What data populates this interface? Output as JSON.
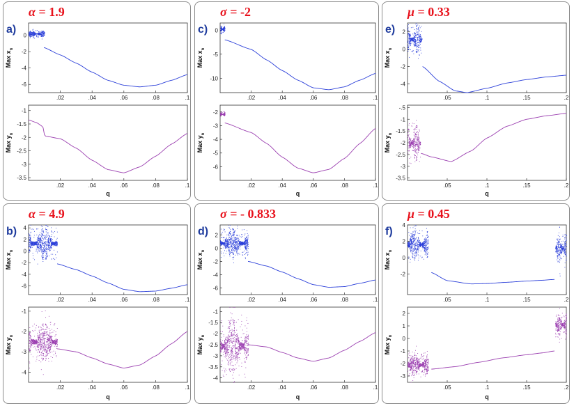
{
  "figure": {
    "xlabel": "q",
    "ylabel_top": "Max x",
    "ylabel_bottom": "Max y",
    "subscript": "n",
    "colors": {
      "x_series": "#2b3fd9",
      "y_series": "#9b3fb0",
      "param": "#e8111b",
      "letter": "#1f3c9e"
    }
  },
  "chart_data": [
    {
      "id": "a",
      "letter": "a)",
      "symbol": "α",
      "param_text": " = 1.9",
      "qmax": 0.1,
      "top": {
        "type": "scatter",
        "ylim": [
          -7,
          1.5
        ],
        "yticks": [
          -6,
          -4,
          -2,
          0
        ],
        "chaos": [
          {
            "q0": 0.0,
            "q1": 0.01,
            "ylo": -0.2,
            "yhi": 0.6,
            "density": 0.7
          }
        ],
        "curve": [
          [
            0.0097,
            -1.5
          ],
          [
            0.02,
            -2.4
          ],
          [
            0.03,
            -3.4
          ],
          [
            0.04,
            -4.5
          ],
          [
            0.05,
            -5.5
          ],
          [
            0.06,
            -6.1
          ],
          [
            0.07,
            -6.3
          ],
          [
            0.08,
            -6.1
          ],
          [
            0.09,
            -5.5
          ],
          [
            0.1,
            -4.8
          ]
        ]
      },
      "bottom": {
        "type": "scatter",
        "ylim": [
          -3.6,
          -0.8
        ],
        "yticks": [
          -3.5,
          -3,
          -2.5,
          -2,
          -1.5,
          -1
        ],
        "chaos": [],
        "curve": [
          [
            0.0,
            -1.35
          ],
          [
            0.005,
            -1.45
          ],
          [
            0.009,
            -1.6
          ],
          [
            0.0102,
            -1.95
          ],
          [
            0.02,
            -2.05
          ],
          [
            0.03,
            -2.4
          ],
          [
            0.04,
            -2.85
          ],
          [
            0.05,
            -3.2
          ],
          [
            0.06,
            -3.32
          ],
          [
            0.07,
            -3.1
          ],
          [
            0.08,
            -2.7
          ],
          [
            0.09,
            -2.25
          ],
          [
            0.1,
            -1.85
          ]
        ]
      },
      "xticks": [
        0.02,
        0.04,
        0.06,
        0.08,
        0.1
      ]
    },
    {
      "id": "c",
      "letter": "c)",
      "symbol": "σ",
      "param_text": " = -2",
      "qmax": 0.1,
      "top": {
        "type": "scatter",
        "ylim": [
          -13,
          1.5
        ],
        "yticks": [
          -10,
          -5,
          0
        ],
        "chaos": [
          {
            "q0": 0.0,
            "q1": 0.003,
            "ylo": -0.5,
            "yhi": 1.0,
            "density": 0.6
          }
        ],
        "curve": [
          [
            0.003,
            -2.0
          ],
          [
            0.02,
            -4.0
          ],
          [
            0.03,
            -6.2
          ],
          [
            0.04,
            -8.4
          ],
          [
            0.05,
            -10.4
          ],
          [
            0.06,
            -12.0
          ],
          [
            0.07,
            -12.4
          ],
          [
            0.08,
            -11.8
          ],
          [
            0.09,
            -10.4
          ],
          [
            0.1,
            -9.0
          ]
        ]
      },
      "bottom": {
        "type": "scatter",
        "ylim": [
          -7,
          -1.5
        ],
        "yticks": [
          -6,
          -5,
          -4,
          -3,
          -2
        ],
        "chaos": [
          {
            "q0": 0.0,
            "q1": 0.003,
            "ylo": -2.3,
            "yhi": -2.0,
            "density": 0.6
          }
        ],
        "curve": [
          [
            0.003,
            -2.8
          ],
          [
            0.02,
            -3.5
          ],
          [
            0.03,
            -4.3
          ],
          [
            0.04,
            -5.3
          ],
          [
            0.05,
            -6.1
          ],
          [
            0.06,
            -6.45
          ],
          [
            0.07,
            -6.2
          ],
          [
            0.08,
            -5.4
          ],
          [
            0.09,
            -4.3
          ],
          [
            0.1,
            -3.2
          ]
        ]
      },
      "xticks": [
        0.02,
        0.04,
        0.06,
        0.08,
        0.1
      ]
    },
    {
      "id": "e",
      "letter": "e)",
      "symbol": "μ",
      "param_text": " = 0.33",
      "qmax": 0.2,
      "top": {
        "type": "scatter",
        "ylim": [
          -5,
          3
        ],
        "yticks": [
          -4,
          -2,
          0,
          2
        ],
        "chaos": [
          {
            "q0": 0.0,
            "q1": 0.018,
            "ylo": -0.5,
            "yhi": 2.8,
            "density": 0.9
          }
        ],
        "curve": [
          [
            0.019,
            -2.0
          ],
          [
            0.04,
            -3.7
          ],
          [
            0.06,
            -4.8
          ],
          [
            0.075,
            -5.0
          ],
          [
            0.1,
            -4.5
          ],
          [
            0.125,
            -3.9
          ],
          [
            0.15,
            -3.5
          ],
          [
            0.175,
            -3.2
          ],
          [
            0.2,
            -3.0
          ]
        ]
      },
      "bottom": {
        "type": "scatter",
        "ylim": [
          -3.6,
          -0.4
        ],
        "yticks": [
          -3.5,
          -3,
          -2.5,
          -2,
          -1.5,
          -1,
          -0.5
        ],
        "chaos": [
          {
            "q0": 0.0,
            "q1": 0.016,
            "ylo": -2.8,
            "yhi": -1.2,
            "density": 0.9
          }
        ],
        "curve": [
          [
            0.017,
            -2.45
          ],
          [
            0.03,
            -2.6
          ],
          [
            0.055,
            -2.8
          ],
          [
            0.08,
            -2.35
          ],
          [
            0.1,
            -1.8
          ],
          [
            0.125,
            -1.3
          ],
          [
            0.15,
            -1.0
          ],
          [
            0.175,
            -0.85
          ],
          [
            0.2,
            -0.75
          ]
        ]
      },
      "xticks": [
        0.05,
        0.1,
        0.15,
        0.2
      ]
    },
    {
      "id": "b",
      "letter": "b)",
      "symbol": "α",
      "param_text": " = 4.9",
      "qmax": 0.1,
      "top": {
        "type": "scatter",
        "ylim": [
          -7.5,
          4.5
        ],
        "yticks": [
          -6,
          -4,
          -2,
          0,
          2,
          4
        ],
        "chaos": [
          {
            "q0": 0.0,
            "q1": 0.018,
            "ylo": -1.5,
            "yhi": 4.2,
            "density": 1.0
          }
        ],
        "curve": [
          [
            0.018,
            -2.2
          ],
          [
            0.03,
            -3.2
          ],
          [
            0.04,
            -4.3
          ],
          [
            0.05,
            -5.5
          ],
          [
            0.06,
            -6.6
          ],
          [
            0.07,
            -7.0
          ],
          [
            0.08,
            -6.9
          ],
          [
            0.09,
            -6.4
          ],
          [
            0.1,
            -5.8
          ]
        ]
      },
      "bottom": {
        "type": "scatter",
        "ylim": [
          -4.5,
          -0.8
        ],
        "yticks": [
          -4,
          -3,
          -2,
          -1
        ],
        "chaos": [
          {
            "q0": 0.0,
            "q1": 0.018,
            "ylo": -3.5,
            "yhi": -1.5,
            "density": 1.0
          }
        ],
        "curve": [
          [
            0.018,
            -2.85
          ],
          [
            0.03,
            -3.0
          ],
          [
            0.04,
            -3.3
          ],
          [
            0.05,
            -3.6
          ],
          [
            0.06,
            -3.8
          ],
          [
            0.07,
            -3.65
          ],
          [
            0.08,
            -3.2
          ],
          [
            0.09,
            -2.6
          ],
          [
            0.1,
            -2.0
          ]
        ]
      },
      "xticks": [
        0.02,
        0.04,
        0.06,
        0.08,
        0.1
      ]
    },
    {
      "id": "d",
      "letter": "d)",
      "symbol": "σ",
      "param_text": " = - 0.833",
      "qmax": 0.1,
      "top": {
        "type": "scatter",
        "ylim": [
          -7,
          3.5
        ],
        "yticks": [
          -6,
          -4,
          -2,
          0,
          2
        ],
        "chaos": [
          {
            "q0": 0.0,
            "q1": 0.018,
            "ylo": -1.5,
            "yhi": 3.0,
            "density": 1.0
          }
        ],
        "curve": [
          [
            0.018,
            -2.0
          ],
          [
            0.03,
            -2.7
          ],
          [
            0.04,
            -3.6
          ],
          [
            0.05,
            -4.6
          ],
          [
            0.06,
            -5.5
          ],
          [
            0.07,
            -5.9
          ],
          [
            0.08,
            -5.8
          ],
          [
            0.09,
            -5.3
          ],
          [
            0.1,
            -4.8
          ]
        ]
      },
      "bottom": {
        "type": "scatter",
        "ylim": [
          -4.2,
          -0.8
        ],
        "yticks": [
          -4,
          -3.5,
          -3,
          -2.5,
          -2,
          -1.5,
          -1
        ],
        "chaos": [
          {
            "q0": 0.0,
            "q1": 0.018,
            "ylo": -3.9,
            "yhi": -1.2,
            "density": 1.0
          }
        ],
        "curve": [
          [
            0.018,
            -2.5
          ],
          [
            0.03,
            -2.6
          ],
          [
            0.04,
            -2.85
          ],
          [
            0.05,
            -3.1
          ],
          [
            0.06,
            -3.25
          ],
          [
            0.07,
            -3.1
          ],
          [
            0.08,
            -2.75
          ],
          [
            0.09,
            -2.35
          ],
          [
            0.1,
            -1.95
          ]
        ]
      },
      "xticks": [
        0.02,
        0.04,
        0.06,
        0.08,
        0.1
      ]
    },
    {
      "id": "f",
      "letter": "f)",
      "symbol": "μ",
      "param_text": " = 0.45",
      "qmax": 0.2,
      "top": {
        "type": "scatter",
        "ylim": [
          -4.5,
          4
        ],
        "yticks": [
          -2,
          0,
          2,
          4
        ],
        "chaos": [
          {
            "q0": 0.0,
            "q1": 0.026,
            "ylo": -0.2,
            "yhi": 3.5,
            "density": 1.0
          },
          {
            "q0": 0.186,
            "q1": 0.2,
            "ylo": -0.8,
            "yhi": 3.0,
            "density": 0.8
          }
        ],
        "curve": [
          [
            0.03,
            -1.8
          ],
          [
            0.05,
            -2.8
          ],
          [
            0.08,
            -3.2
          ],
          [
            0.1,
            -3.15
          ],
          [
            0.125,
            -3.0
          ],
          [
            0.15,
            -2.85
          ],
          [
            0.17,
            -2.75
          ],
          [
            0.185,
            -2.65
          ]
        ]
      },
      "bottom": {
        "type": "scatter",
        "ylim": [
          -3.5,
          2.5
        ],
        "yticks": [
          -3,
          -2,
          -1,
          0,
          1,
          2
        ],
        "chaos": [
          {
            "q0": 0.0,
            "q1": 0.026,
            "ylo": -3.0,
            "yhi": -1.2,
            "density": 1.0
          },
          {
            "q0": 0.186,
            "q1": 0.2,
            "ylo": 0.2,
            "yhi": 2.0,
            "density": 0.8
          }
        ],
        "curve": [
          [
            0.03,
            -2.45
          ],
          [
            0.06,
            -2.25
          ],
          [
            0.09,
            -1.9
          ],
          [
            0.12,
            -1.55
          ],
          [
            0.15,
            -1.3
          ],
          [
            0.17,
            -1.15
          ],
          [
            0.185,
            -1.0
          ]
        ]
      },
      "xticks": [
        0.05,
        0.1,
        0.15,
        0.2
      ]
    }
  ]
}
